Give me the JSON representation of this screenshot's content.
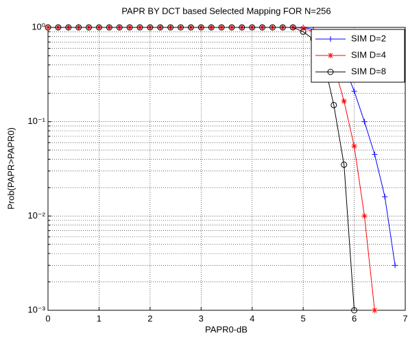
{
  "chart_data": {
    "type": "line",
    "title": "PAPR BY DCT based Selected Mapping FOR N=256",
    "x_label": "PAPR0-dB",
    "y_label": "Prob(PAPR>PAPR0)",
    "x": [
      0,
      0.2,
      0.4,
      0.6,
      0.8,
      1,
      1.2,
      1.4,
      1.6,
      1.8,
      2,
      2.2,
      2.4,
      2.6,
      2.8,
      3,
      3.2,
      3.4,
      3.6,
      3.8,
      4,
      4.2,
      4.4,
      4.6,
      4.8,
      5,
      5.2,
      5.4,
      5.6,
      5.8,
      6,
      6.2,
      6.4,
      6.6,
      6.8
    ],
    "series": [
      {
        "name": "SIM D=2",
        "color": "#0000ff",
        "marker": "plus",
        "values": [
          1,
          1,
          1,
          1,
          1,
          1,
          1,
          1,
          1,
          1,
          1,
          1,
          1,
          1,
          1,
          1,
          1,
          1,
          1,
          1,
          1,
          1,
          1,
          1,
          1,
          1,
          0.95,
          0.85,
          0.65,
          0.4,
          0.21,
          0.1,
          0.045,
          0.016,
          0.003
        ]
      },
      {
        "name": "SIM D=4",
        "color": "#ff0000",
        "marker": "star",
        "values": [
          1,
          1,
          1,
          1,
          1,
          1,
          1,
          1,
          1,
          1,
          1,
          1,
          1,
          1,
          1,
          1,
          1,
          1,
          1,
          1,
          1,
          1,
          1,
          1,
          1,
          0.98,
          0.9,
          0.7,
          0.4,
          0.165,
          0.055,
          0.01,
          0.001,
          null,
          null
        ]
      },
      {
        "name": "SIM D=8",
        "color": "#000000",
        "marker": "circle",
        "values": [
          1,
          1,
          1,
          1,
          1,
          1,
          1,
          1,
          1,
          1,
          1,
          1,
          1,
          1,
          1,
          1,
          1,
          1,
          1,
          1,
          1,
          1,
          1,
          1,
          1,
          0.9,
          0.75,
          0.45,
          0.15,
          0.035,
          0.001,
          null,
          null,
          null,
          null
        ]
      }
    ],
    "xlim": [
      0,
      7
    ],
    "xticks": [
      0,
      1,
      2,
      3,
      4,
      5,
      6,
      7
    ],
    "ylim": [
      0.001,
      1
    ],
    "log_y": true,
    "yticks": [
      {
        "value": 0.001,
        "label": "10⁻³"
      },
      {
        "value": 0.01,
        "label": "10⁻²"
      },
      {
        "value": 0.1,
        "label": "10⁻¹"
      },
      {
        "value": 1,
        "label": "10⁰"
      }
    ],
    "grid": true,
    "legend": "upper-right"
  }
}
